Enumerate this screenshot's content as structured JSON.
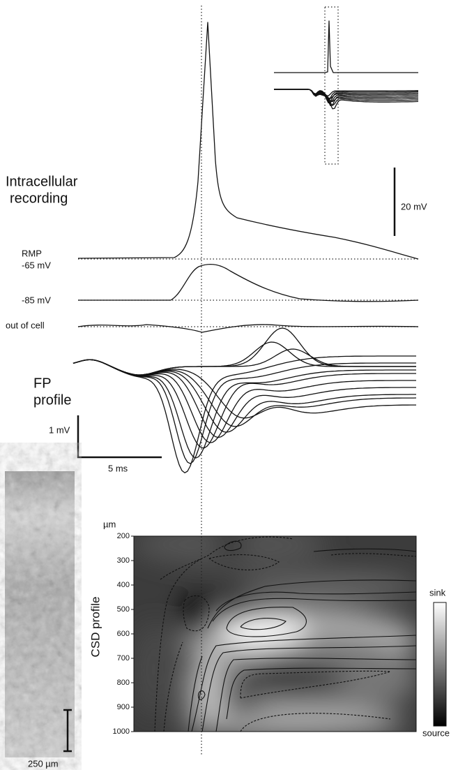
{
  "intracellular": {
    "label_line1": "Intracellular",
    "label_line2": "recording",
    "scale": "20 mV",
    "rmp_label": "RMP",
    "rmp_value": "-65 mV",
    "hyper_value": "-85 mV",
    "out_of_cell": "out of cell"
  },
  "fp": {
    "label_line1": "FP",
    "label_line2": "profile",
    "scale_y": "1 mV",
    "scale_x": "5 ms"
  },
  "csd": {
    "unit": "µm",
    "axis_label": "CSD profile",
    "ticks": [
      200,
      300,
      400,
      500,
      600,
      700,
      800,
      900,
      1000
    ],
    "colorbar_top": "sink",
    "colorbar_bottom": "source"
  },
  "histology": {
    "scale": "250 µm"
  }
}
